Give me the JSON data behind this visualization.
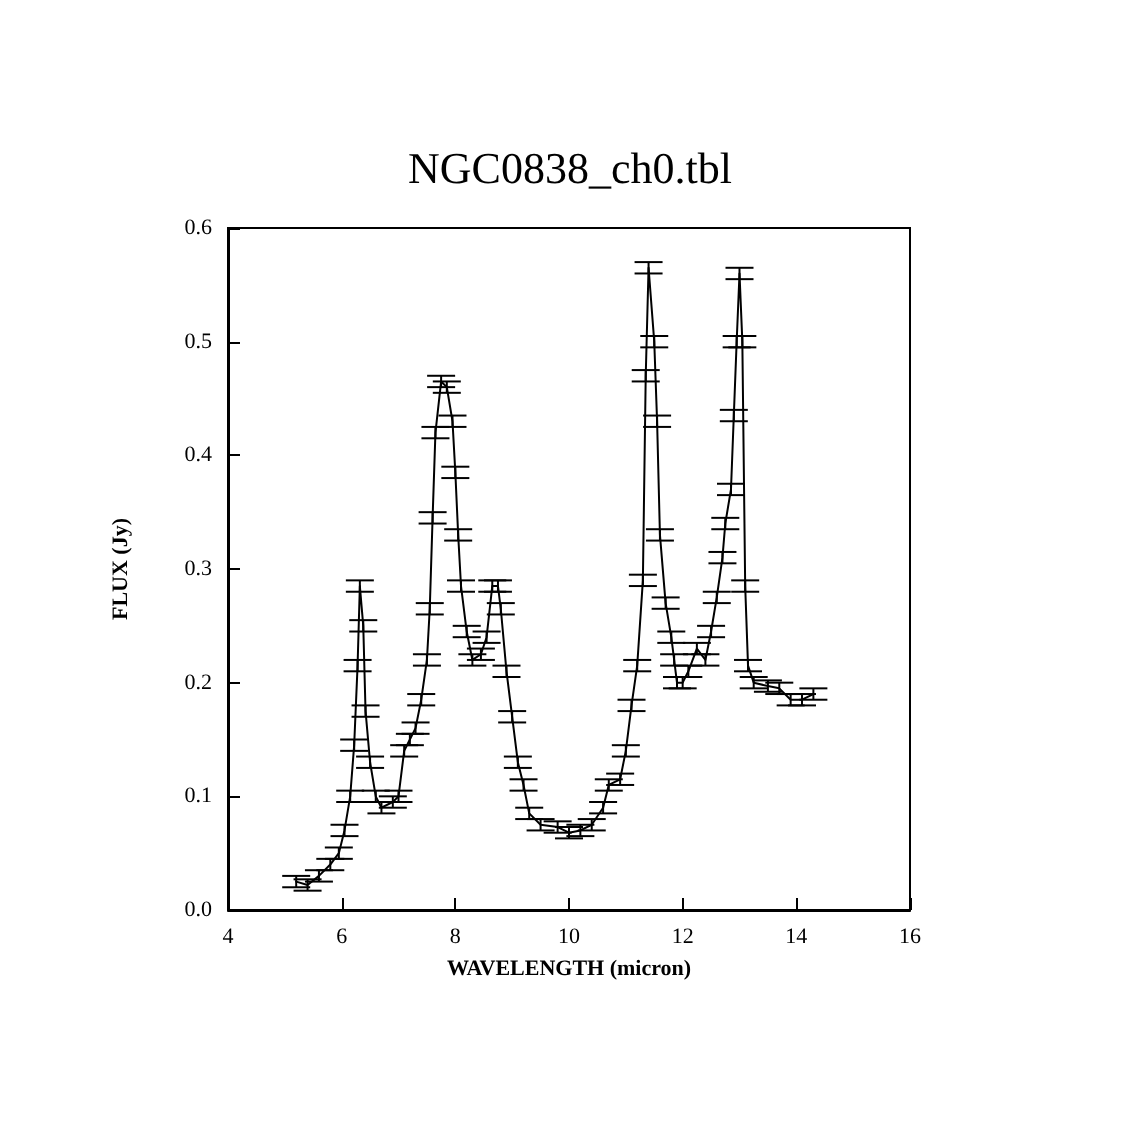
{
  "chart_data": {
    "type": "line",
    "title": "NGC0838_ch0.tbl",
    "xlabel": "WAVELENGTH (micron)",
    "ylabel": "FLUX (Jy)",
    "x": [
      5.2,
      5.4,
      5.6,
      5.8,
      5.95,
      6.05,
      6.15,
      6.22,
      6.28,
      6.32,
      6.38,
      6.42,
      6.5,
      6.6,
      6.7,
      6.9,
      7.0,
      7.1,
      7.2,
      7.3,
      7.4,
      7.5,
      7.55,
      7.6,
      7.65,
      7.75,
      7.85,
      7.95,
      8.0,
      8.05,
      8.1,
      8.2,
      8.3,
      8.45,
      8.55,
      8.65,
      8.75,
      8.8,
      8.9,
      9.0,
      9.1,
      9.2,
      9.3,
      9.5,
      9.8,
      10.0,
      10.2,
      10.4,
      10.6,
      10.7,
      10.9,
      11.0,
      11.1,
      11.2,
      11.3,
      11.35,
      11.4,
      11.5,
      11.55,
      11.6,
      11.7,
      11.8,
      11.85,
      11.9,
      12.0,
      12.1,
      12.25,
      12.4,
      12.5,
      12.6,
      12.7,
      12.75,
      12.85,
      12.9,
      12.95,
      13.0,
      13.05,
      13.1,
      13.15,
      13.25,
      13.5,
      13.7,
      13.9,
      14.1,
      14.3
    ],
    "values": [
      0.025,
      0.022,
      0.03,
      0.04,
      0.05,
      0.07,
      0.1,
      0.145,
      0.215,
      0.285,
      0.25,
      0.175,
      0.13,
      0.1,
      0.09,
      0.095,
      0.1,
      0.14,
      0.15,
      0.16,
      0.185,
      0.22,
      0.265,
      0.345,
      0.42,
      0.465,
      0.46,
      0.43,
      0.385,
      0.33,
      0.285,
      0.245,
      0.22,
      0.225,
      0.24,
      0.285,
      0.285,
      0.265,
      0.21,
      0.17,
      0.13,
      0.11,
      0.085,
      0.075,
      0.073,
      0.068,
      0.07,
      0.075,
      0.09,
      0.11,
      0.115,
      0.14,
      0.18,
      0.215,
      0.29,
      0.47,
      0.565,
      0.5,
      0.43,
      0.33,
      0.27,
      0.24,
      0.22,
      0.2,
      0.2,
      0.21,
      0.23,
      0.22,
      0.245,
      0.275,
      0.31,
      0.34,
      0.37,
      0.435,
      0.5,
      0.56,
      0.5,
      0.285,
      0.215,
      0.2,
      0.197,
      0.195,
      0.185,
      0.185,
      0.19
    ],
    "errors": [
      0.005,
      0.005,
      0.005,
      0.005,
      0.005,
      0.005,
      0.005,
      0.005,
      0.005,
      0.005,
      0.005,
      0.005,
      0.005,
      0.005,
      0.005,
      0.005,
      0.005,
      0.005,
      0.005,
      0.005,
      0.005,
      0.005,
      0.005,
      0.005,
      0.005,
      0.005,
      0.005,
      0.005,
      0.005,
      0.005,
      0.005,
      0.005,
      0.005,
      0.005,
      0.005,
      0.005,
      0.005,
      0.005,
      0.005,
      0.005,
      0.005,
      0.005,
      0.005,
      0.005,
      0.005,
      0.005,
      0.005,
      0.005,
      0.005,
      0.005,
      0.005,
      0.005,
      0.005,
      0.005,
      0.005,
      0.005,
      0.005,
      0.005,
      0.005,
      0.005,
      0.005,
      0.005,
      0.005,
      0.005,
      0.005,
      0.005,
      0.005,
      0.005,
      0.005,
      0.005,
      0.005,
      0.005,
      0.005,
      0.005,
      0.005,
      0.005,
      0.005,
      0.005,
      0.005,
      0.005,
      0.005,
      0.005,
      0.005,
      0.005,
      0.005
    ],
    "color": "#000000",
    "marker": "none",
    "line_style": "solid",
    "grid": false,
    "xlim": [
      4,
      16
    ],
    "xticks": [
      4,
      6,
      8,
      10,
      12,
      14,
      16
    ],
    "ylim": [
      0,
      0.6
    ],
    "yticks": [
      {
        "value": 0,
        "label": "0.0"
      },
      0.1,
      0.2,
      0.3,
      0.4,
      0.5,
      0.6
    ]
  }
}
